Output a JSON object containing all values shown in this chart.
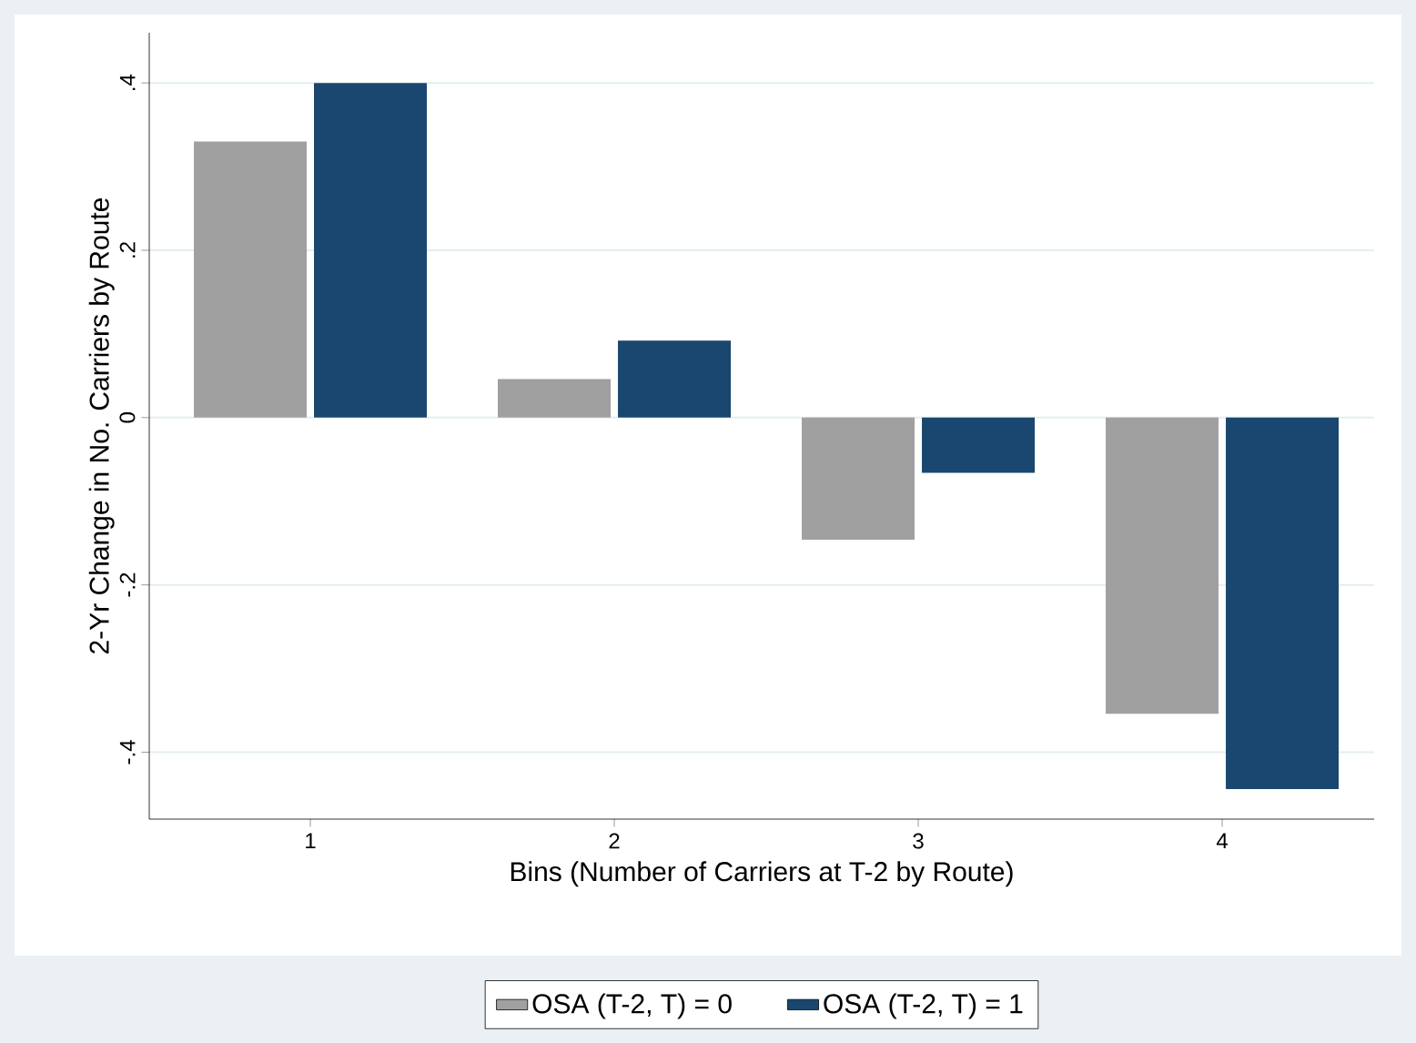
{
  "chart_data": {
    "type": "bar",
    "xlabel": "Bins (Number of Carriers at T-2 by Route)",
    "ylabel": "2-Yr Change in No. Carriers by Route",
    "categories": [
      "1",
      "2",
      "3",
      "4"
    ],
    "series": [
      {
        "name": "OSA (T-2, T) = 0",
        "color": "#a0a0a0",
        "values": [
          0.33,
          0.046,
          -0.146,
          -0.354
        ]
      },
      {
        "name": "OSA (T-2, T) = 1",
        "color": "#1a476f",
        "values": [
          0.4,
          0.092,
          -0.066,
          -0.444
        ]
      }
    ],
    "ylim": [
      -0.48,
      0.46
    ],
    "yticks": [
      {
        "value": -0.4,
        "label": "-.4"
      },
      {
        "value": -0.2,
        "label": "-.2"
      },
      0,
      {
        "value": 0.2,
        "label": ".2"
      },
      {
        "value": 0.4,
        "label": ".4"
      }
    ],
    "grid": "y",
    "legend": "bottom"
  }
}
